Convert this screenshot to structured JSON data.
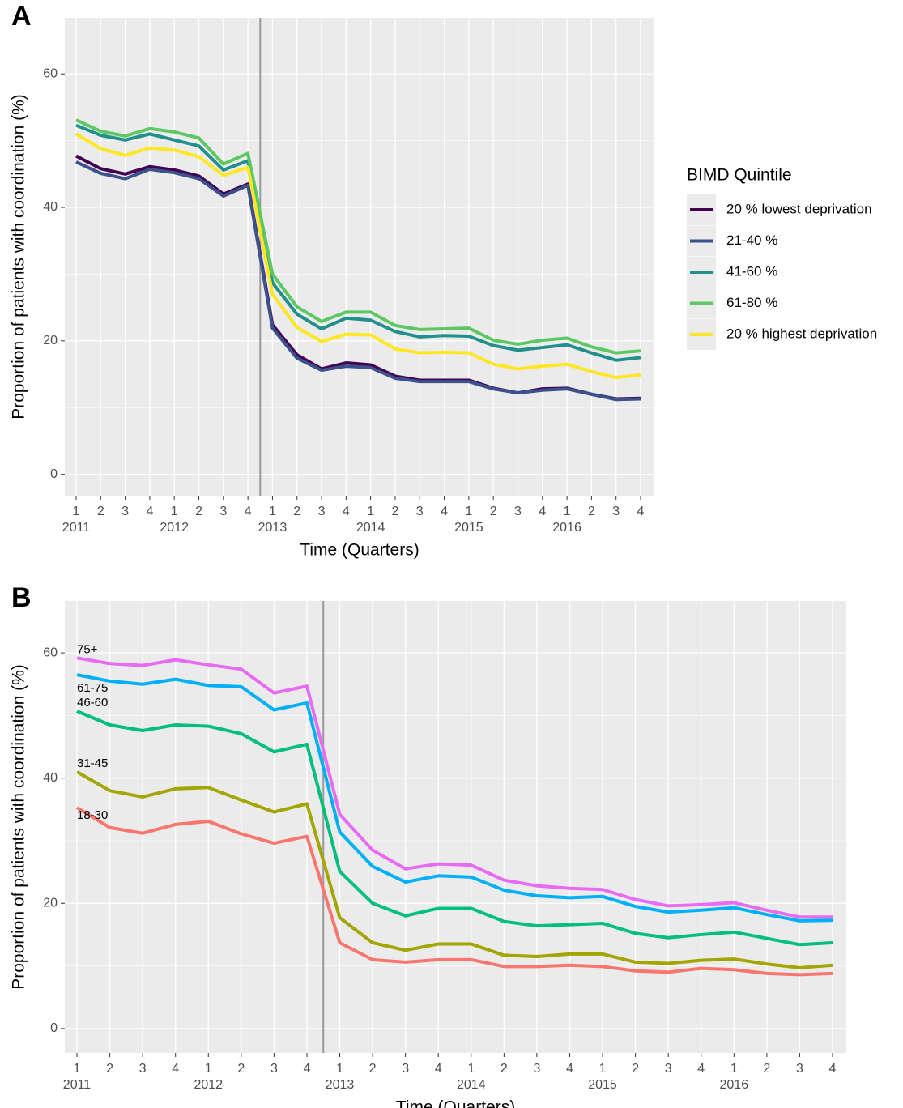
{
  "chart_data": [
    {
      "type": "line",
      "panel_label": "A",
      "x_label": "Time (Quarters)",
      "y_label": "Proportion of patients with coordination (%)",
      "categories": [
        "1",
        "2",
        "3",
        "4",
        "1",
        "2",
        "3",
        "4",
        "1",
        "2",
        "3",
        "4",
        "1",
        "2",
        "3",
        "4",
        "1",
        "2",
        "3",
        "4",
        "1",
        "2",
        "3",
        "4"
      ],
      "years": [
        "2011",
        null,
        null,
        null,
        "2012",
        null,
        null,
        null,
        "2013",
        null,
        null,
        null,
        "2014",
        null,
        null,
        null,
        "2015",
        null,
        null,
        null,
        "2016",
        null,
        null,
        null
      ],
      "ylim": [
        -3.2,
        68.4
      ],
      "yticks": [
        0,
        20,
        40,
        60
      ],
      "y_minor_grid": [
        10,
        30,
        50
      ],
      "grid": true,
      "vline_x": 7.5,
      "legend_title": "BIMD Quintile",
      "legend": "right",
      "series": [
        {
          "name": "20 % lowest deprivation",
          "color": "#440154",
          "values": [
            47.7,
            45.8,
            45.0,
            46.1,
            45.6,
            44.7,
            42.0,
            43.5,
            22.4,
            17.9,
            15.8,
            16.7,
            16.4,
            14.7,
            14.1,
            14.1,
            14.1,
            12.9,
            12.2,
            12.8,
            12.9,
            12.0,
            11.3,
            11.4
          ]
        },
        {
          "name": "21-40 %",
          "color": "#3b528b",
          "values": [
            46.8,
            45.1,
            44.3,
            45.7,
            45.2,
            44.3,
            41.7,
            43.3,
            21.9,
            17.4,
            15.6,
            16.2,
            16.0,
            14.4,
            13.9,
            13.9,
            13.9,
            12.8,
            12.2,
            12.6,
            12.8,
            12.0,
            11.2,
            11.3
          ]
        },
        {
          "name": "41-60 %",
          "color": "#21908d",
          "values": [
            52.3,
            50.8,
            50.1,
            51.0,
            50.1,
            49.2,
            45.6,
            47.0,
            28.7,
            24.0,
            21.8,
            23.4,
            23.1,
            21.4,
            20.6,
            20.8,
            20.7,
            19.3,
            18.6,
            19.0,
            19.4,
            18.2,
            17.1,
            17.5
          ]
        },
        {
          "name": "61-80 %",
          "color": "#5dc863",
          "values": [
            53.1,
            51.4,
            50.7,
            51.8,
            51.3,
            50.4,
            46.5,
            48.1,
            30.0,
            25.1,
            22.9,
            24.3,
            24.3,
            22.3,
            21.7,
            21.8,
            21.9,
            20.1,
            19.5,
            20.1,
            20.4,
            19.1,
            18.2,
            18.5
          ]
        },
        {
          "name": "20 % highest deprivation",
          "color": "#fde725",
          "values": [
            51.0,
            48.8,
            47.8,
            48.9,
            48.6,
            47.6,
            44.8,
            46.0,
            27.0,
            22.0,
            19.9,
            21.0,
            20.9,
            18.8,
            18.2,
            18.3,
            18.2,
            16.5,
            15.8,
            16.2,
            16.5,
            15.4,
            14.5,
            14.9
          ]
        }
      ]
    },
    {
      "type": "line",
      "panel_label": "B",
      "x_label": "Time (Quarters)",
      "y_label": "Proportion of patients with coordination (%)",
      "categories": [
        "1",
        "2",
        "3",
        "4",
        "1",
        "2",
        "3",
        "4",
        "1",
        "2",
        "3",
        "4",
        "1",
        "2",
        "3",
        "4",
        "1",
        "2",
        "3",
        "4",
        "1",
        "2",
        "3",
        "4"
      ],
      "years": [
        "2011",
        null,
        null,
        null,
        "2012",
        null,
        null,
        null,
        "2013",
        null,
        null,
        null,
        "2014",
        null,
        null,
        null,
        "2015",
        null,
        null,
        null,
        "2016",
        null,
        null,
        null
      ],
      "ylim": [
        -3.9,
        68.3
      ],
      "yticks": [
        0,
        20,
        40,
        60
      ],
      "y_minor_grid": [
        10,
        30,
        50
      ],
      "grid": true,
      "vline_x": 7.5,
      "legend": "direct-labels",
      "series": [
        {
          "name": "18-30",
          "color": "#f8766d",
          "values": [
            35.3,
            32.1,
            31.2,
            32.6,
            33.1,
            31.1,
            29.6,
            30.7,
            13.7,
            11.0,
            10.6,
            11.0,
            11.0,
            9.9,
            9.9,
            10.1,
            9.9,
            9.2,
            9.0,
            9.6,
            9.4,
            8.8,
            8.6,
            8.8
          ]
        },
        {
          "name": "31-45",
          "color": "#a3a500",
          "values": [
            41.0,
            38.0,
            37.0,
            38.3,
            38.5,
            36.5,
            34.6,
            35.9,
            17.7,
            13.7,
            12.5,
            13.5,
            13.5,
            11.7,
            11.5,
            11.9,
            11.9,
            10.6,
            10.4,
            10.9,
            11.1,
            10.3,
            9.7,
            10.1
          ]
        },
        {
          "name": "46-60",
          "color": "#00bf7d",
          "values": [
            50.7,
            48.5,
            47.6,
            48.5,
            48.3,
            47.1,
            44.2,
            45.4,
            25.1,
            20.0,
            18.0,
            19.2,
            19.2,
            17.1,
            16.4,
            16.6,
            16.8,
            15.2,
            14.5,
            15.0,
            15.4,
            14.4,
            13.4,
            13.7
          ]
        },
        {
          "name": "61-75",
          "color": "#00b0f6",
          "values": [
            56.5,
            55.5,
            55.0,
            55.8,
            54.8,
            54.6,
            50.9,
            52.0,
            31.4,
            25.9,
            23.4,
            24.4,
            24.2,
            22.1,
            21.2,
            20.9,
            21.1,
            19.5,
            18.6,
            18.9,
            19.3,
            18.2,
            17.2,
            17.3
          ]
        },
        {
          "name": "75+",
          "color": "#e76bf3",
          "values": [
            59.2,
            58.3,
            58.0,
            58.9,
            58.1,
            57.4,
            53.6,
            54.7,
            34.2,
            28.5,
            25.5,
            26.3,
            26.1,
            23.7,
            22.8,
            22.4,
            22.2,
            20.6,
            19.6,
            19.8,
            20.1,
            18.9,
            17.8,
            17.8
          ]
        }
      ]
    }
  ]
}
